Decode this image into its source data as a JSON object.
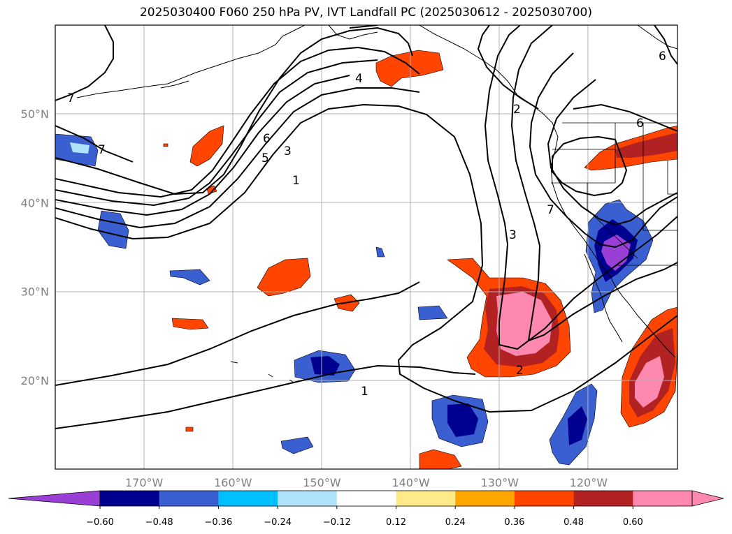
{
  "title": "2025030400 F060 250 hPa PV, IVT Landfall PC (2025030612 - 2025030700)",
  "map": {
    "lon_range": [
      -180,
      -110
    ],
    "lat_range": [
      10,
      60
    ],
    "lon_ticks": [
      {
        "lon": -170,
        "label": "170°W"
      },
      {
        "lon": -160,
        "label": "160°W"
      },
      {
        "lon": -150,
        "label": "150°W"
      },
      {
        "lon": -140,
        "label": "140°W"
      },
      {
        "lon": -130,
        "label": "130°W"
      },
      {
        "lon": -120,
        "label": "120°W"
      }
    ],
    "lat_ticks": [
      {
        "lat": 20,
        "label": "20°N"
      },
      {
        "lat": 30,
        "label": "30°N"
      },
      {
        "lat": 40,
        "label": "40°N"
      },
      {
        "lat": 50,
        "label": "50°N"
      }
    ],
    "grid": true,
    "contour_labels": [
      "4",
      "7",
      "7",
      "6",
      "5",
      "3",
      "1",
      "6",
      "2",
      "7",
      "3",
      "2",
      "1",
      "6"
    ]
  },
  "colorbar": {
    "ticks": [
      "−0.60",
      "−0.48",
      "−0.36",
      "−0.24",
      "−0.12",
      "0.12",
      "0.24",
      "0.36",
      "0.48",
      "0.60"
    ],
    "colors": [
      "#9a3fd6",
      "#000090",
      "#3a5fd0",
      "#00bfff",
      "#aee3fb",
      "#ffffff",
      "#ffea8a",
      "#ffa500",
      "#ff4500",
      "#b22222",
      "#ff88b0",
      "#ff88b0"
    ],
    "extend": "both"
  }
}
